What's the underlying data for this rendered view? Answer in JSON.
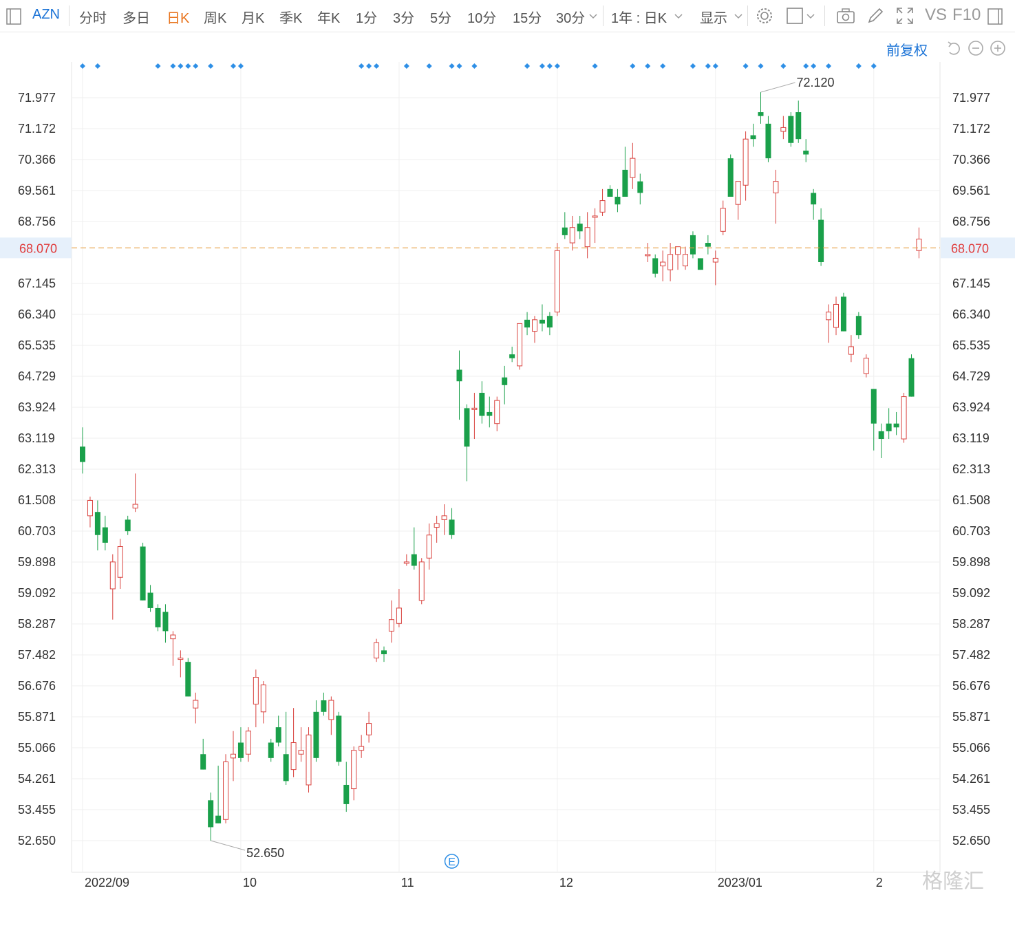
{
  "toolbar": {
    "symbol": "AZN",
    "periods": [
      "分时",
      "多日",
      "日K",
      "周K",
      "月K",
      "季K",
      "年K",
      "1分",
      "3分",
      "5分",
      "10分",
      "15分",
      "30分"
    ],
    "active_period": "日K",
    "range_select": "1年 : 日K",
    "display_select": "显示",
    "vs_label": "VS",
    "f10_label": "F10",
    "icons": [
      "panel-toggle-icon",
      "chevron-down-icon",
      "gear-icon",
      "square-icon",
      "camera-icon",
      "pencil-icon",
      "fullscreen-icon",
      "panel-right-icon"
    ]
  },
  "controls": {
    "restore_label": "前复权",
    "icons": [
      "undo-icon",
      "zoom-out-icon",
      "zoom-in-icon"
    ]
  },
  "event_marker_label": "E",
  "watermark": "格隆汇",
  "colors": {
    "up": "#d9413d",
    "down": "#1aa04a",
    "current_line": "#e8a043",
    "current_label": "#e03b3b",
    "accent": "#1b73d6",
    "marker": "#2e8fe6"
  },
  "chart_data": {
    "type": "candlestick",
    "ylim": [
      52.3,
      72.6
    ],
    "y_ticks": [
      "71.977",
      "71.172",
      "70.366",
      "69.561",
      "68.756",
      "67.145",
      "66.340",
      "65.535",
      "64.729",
      "63.924",
      "63.119",
      "62.313",
      "61.508",
      "60.703",
      "59.898",
      "59.092",
      "58.287",
      "57.482",
      "56.676",
      "55.871",
      "55.066",
      "54.261",
      "53.455",
      "52.650"
    ],
    "current_price": "68.070",
    "max_label": "72.120",
    "min_label": "52.650",
    "x_labels": [
      {
        "label": "2022/09",
        "index": 0
      },
      {
        "label": "10",
        "index": 21
      },
      {
        "label": "11",
        "index": 42
      },
      {
        "label": "12",
        "index": 63
      },
      {
        "label": "2023/01",
        "index": 84
      },
      {
        "label": "2",
        "index": 105
      }
    ],
    "event_index": 49,
    "marker_indices": [
      0,
      2,
      10,
      12,
      13,
      14,
      15,
      17,
      20,
      21,
      37,
      38,
      39,
      43,
      46,
      49,
      50,
      52,
      59,
      61,
      62,
      63,
      68,
      73,
      75,
      77,
      81,
      83,
      84,
      88,
      90,
      93,
      96,
      97,
      99,
      103,
      105
    ],
    "candles": [
      {
        "o": 62.9,
        "h": 63.4,
        "l": 62.2,
        "c": 62.5
      },
      {
        "o": 61.1,
        "h": 61.6,
        "l": 60.8,
        "c": 61.5
      },
      {
        "o": 61.2,
        "h": 61.5,
        "l": 60.2,
        "c": 60.6
      },
      {
        "o": 60.8,
        "h": 61.1,
        "l": 60.2,
        "c": 60.4
      },
      {
        "o": 59.2,
        "h": 60.1,
        "l": 58.4,
        "c": 59.9
      },
      {
        "o": 59.5,
        "h": 60.5,
        "l": 59.2,
        "c": 60.3
      },
      {
        "o": 61.0,
        "h": 61.1,
        "l": 60.6,
        "c": 60.7
      },
      {
        "o": 61.3,
        "h": 62.2,
        "l": 61.2,
        "c": 61.4
      },
      {
        "o": 60.3,
        "h": 60.4,
        "l": 58.9,
        "c": 58.9
      },
      {
        "o": 59.1,
        "h": 59.3,
        "l": 58.6,
        "c": 58.7
      },
      {
        "o": 58.7,
        "h": 58.8,
        "l": 58.1,
        "c": 58.2
      },
      {
        "o": 58.6,
        "h": 58.8,
        "l": 57.8,
        "c": 58.1
      },
      {
        "o": 57.9,
        "h": 58.1,
        "l": 57.2,
        "c": 58.0
      },
      {
        "o": 57.4,
        "h": 57.6,
        "l": 56.9,
        "c": 57.4
      },
      {
        "o": 57.3,
        "h": 57.4,
        "l": 56.4,
        "c": 56.4
      },
      {
        "o": 56.1,
        "h": 56.5,
        "l": 55.7,
        "c": 56.3
      },
      {
        "o": 54.9,
        "h": 55.3,
        "l": 54.5,
        "c": 54.5
      },
      {
        "o": 53.7,
        "h": 53.9,
        "l": 52.65,
        "c": 53.0
      },
      {
        "o": 53.3,
        "h": 54.6,
        "l": 53.1,
        "c": 53.1
      },
      {
        "o": 53.2,
        "h": 54.9,
        "l": 53.1,
        "c": 54.7
      },
      {
        "o": 54.8,
        "h": 55.5,
        "l": 54.2,
        "c": 54.9
      },
      {
        "o": 55.2,
        "h": 55.6,
        "l": 54.7,
        "c": 54.8
      },
      {
        "o": 54.9,
        "h": 55.6,
        "l": 54.7,
        "c": 55.5
      },
      {
        "o": 56.2,
        "h": 57.1,
        "l": 55.6,
        "c": 56.9
      },
      {
        "o": 56.0,
        "h": 56.8,
        "l": 55.7,
        "c": 56.7
      },
      {
        "o": 55.2,
        "h": 55.3,
        "l": 54.7,
        "c": 54.8
      },
      {
        "o": 55.6,
        "h": 55.9,
        "l": 55.1,
        "c": 55.2
      },
      {
        "o": 54.9,
        "h": 56.0,
        "l": 54.1,
        "c": 54.2
      },
      {
        "o": 54.5,
        "h": 56.1,
        "l": 54.3,
        "c": 55.2
      },
      {
        "o": 54.9,
        "h": 55.6,
        "l": 54.7,
        "c": 55.0
      },
      {
        "o": 54.1,
        "h": 55.6,
        "l": 53.9,
        "c": 55.4
      },
      {
        "o": 56.0,
        "h": 56.3,
        "l": 54.7,
        "c": 54.8
      },
      {
        "o": 56.3,
        "h": 56.5,
        "l": 55.9,
        "c": 56.0
      },
      {
        "o": 55.8,
        "h": 56.4,
        "l": 55.4,
        "c": 56.3
      },
      {
        "o": 55.9,
        "h": 56.0,
        "l": 54.6,
        "c": 54.7
      },
      {
        "o": 54.1,
        "h": 54.7,
        "l": 53.4,
        "c": 53.6
      },
      {
        "o": 54.0,
        "h": 55.1,
        "l": 53.7,
        "c": 55.0
      },
      {
        "o": 55.0,
        "h": 55.4,
        "l": 54.8,
        "c": 55.1
      },
      {
        "o": 55.4,
        "h": 56.0,
        "l": 55.2,
        "c": 55.7
      },
      {
        "o": 57.4,
        "h": 57.9,
        "l": 57.3,
        "c": 57.8
      },
      {
        "o": 57.6,
        "h": 57.7,
        "l": 57.3,
        "c": 57.5
      },
      {
        "o": 58.1,
        "h": 58.9,
        "l": 57.8,
        "c": 58.4
      },
      {
        "o": 58.3,
        "h": 59.2,
        "l": 58.2,
        "c": 58.7
      },
      {
        "o": 59.9,
        "h": 60.1,
        "l": 59.8,
        "c": 59.9
      },
      {
        "o": 60.1,
        "h": 60.8,
        "l": 59.7,
        "c": 59.8
      },
      {
        "o": 58.9,
        "h": 60.0,
        "l": 58.8,
        "c": 59.9
      },
      {
        "o": 60.0,
        "h": 60.9,
        "l": 59.7,
        "c": 60.6
      },
      {
        "o": 60.8,
        "h": 61.1,
        "l": 60.4,
        "c": 60.9
      },
      {
        "o": 61.0,
        "h": 61.4,
        "l": 60.6,
        "c": 61.1
      },
      {
        "o": 61.0,
        "h": 61.3,
        "l": 60.5,
        "c": 60.6
      },
      {
        "o": 64.9,
        "h": 65.4,
        "l": 63.6,
        "c": 64.6
      },
      {
        "o": 63.9,
        "h": 64.0,
        "l": 62.0,
        "c": 62.9
      },
      {
        "o": 63.9,
        "h": 64.3,
        "l": 63.1,
        "c": 63.9
      },
      {
        "o": 64.3,
        "h": 64.6,
        "l": 63.5,
        "c": 63.7
      },
      {
        "o": 63.8,
        "h": 64.2,
        "l": 63.4,
        "c": 63.7
      },
      {
        "o": 63.5,
        "h": 64.2,
        "l": 63.3,
        "c": 64.1
      },
      {
        "o": 64.7,
        "h": 65.0,
        "l": 64.0,
        "c": 64.5
      },
      {
        "o": 65.3,
        "h": 65.5,
        "l": 65.1,
        "c": 65.2
      },
      {
        "o": 65.0,
        "h": 66.1,
        "l": 64.9,
        "c": 66.1
      },
      {
        "o": 66.2,
        "h": 66.4,
        "l": 65.8,
        "c": 66.0
      },
      {
        "o": 65.9,
        "h": 66.3,
        "l": 65.6,
        "c": 66.2
      },
      {
        "o": 66.2,
        "h": 66.6,
        "l": 65.9,
        "c": 66.1
      },
      {
        "o": 66.3,
        "h": 66.4,
        "l": 65.8,
        "c": 66.0
      },
      {
        "o": 66.4,
        "h": 68.2,
        "l": 66.3,
        "c": 68.0
      },
      {
        "o": 68.6,
        "h": 69.0,
        "l": 68.3,
        "c": 68.4
      },
      {
        "o": 68.2,
        "h": 68.9,
        "l": 68.0,
        "c": 68.6
      },
      {
        "o": 68.7,
        "h": 68.9,
        "l": 68.3,
        "c": 68.5
      },
      {
        "o": 68.1,
        "h": 69.0,
        "l": 67.8,
        "c": 68.6
      },
      {
        "o": 68.9,
        "h": 69.1,
        "l": 68.2,
        "c": 68.9
      },
      {
        "o": 69.0,
        "h": 69.6,
        "l": 68.9,
        "c": 69.3
      },
      {
        "o": 69.6,
        "h": 69.7,
        "l": 69.4,
        "c": 69.4
      },
      {
        "o": 69.4,
        "h": 69.6,
        "l": 69.0,
        "c": 69.2
      },
      {
        "o": 70.1,
        "h": 70.7,
        "l": 69.4,
        "c": 69.4
      },
      {
        "o": 69.9,
        "h": 70.8,
        "l": 69.6,
        "c": 70.4
      },
      {
        "o": 69.8,
        "h": 70.0,
        "l": 69.2,
        "c": 69.5
      },
      {
        "o": 67.9,
        "h": 68.2,
        "l": 67.7,
        "c": 67.9
      },
      {
        "o": 67.8,
        "h": 67.9,
        "l": 67.3,
        "c": 67.4
      },
      {
        "o": 67.6,
        "h": 68.0,
        "l": 67.2,
        "c": 67.7
      },
      {
        "o": 67.5,
        "h": 68.2,
        "l": 67.2,
        "c": 67.9
      },
      {
        "o": 67.9,
        "h": 68.1,
        "l": 67.5,
        "c": 68.1
      },
      {
        "o": 67.6,
        "h": 68.1,
        "l": 67.5,
        "c": 67.9
      },
      {
        "o": 68.4,
        "h": 68.5,
        "l": 67.8,
        "c": 67.9
      },
      {
        "o": 67.8,
        "h": 67.8,
        "l": 67.5,
        "c": 67.5
      },
      {
        "o": 68.2,
        "h": 68.4,
        "l": 67.9,
        "c": 68.1
      },
      {
        "o": 67.7,
        "h": 68.0,
        "l": 67.1,
        "c": 67.8
      },
      {
        "o": 68.5,
        "h": 69.3,
        "l": 68.4,
        "c": 69.1
      },
      {
        "o": 70.4,
        "h": 70.5,
        "l": 69.4,
        "c": 69.4
      },
      {
        "o": 69.2,
        "h": 69.7,
        "l": 68.8,
        "c": 69.8
      },
      {
        "o": 69.7,
        "h": 71.1,
        "l": 69.3,
        "c": 70.9
      },
      {
        "o": 71.0,
        "h": 71.3,
        "l": 70.7,
        "c": 70.9
      },
      {
        "o": 71.6,
        "h": 72.12,
        "l": 71.3,
        "c": 71.5
      },
      {
        "o": 71.3,
        "h": 71.5,
        "l": 70.3,
        "c": 70.4
      },
      {
        "o": 69.5,
        "h": 70.1,
        "l": 68.7,
        "c": 69.8
      },
      {
        "o": 71.1,
        "h": 71.5,
        "l": 70.9,
        "c": 71.2
      },
      {
        "o": 71.5,
        "h": 71.6,
        "l": 70.7,
        "c": 70.8
      },
      {
        "o": 71.6,
        "h": 71.9,
        "l": 70.8,
        "c": 70.9
      },
      {
        "o": 70.6,
        "h": 70.9,
        "l": 70.3,
        "c": 70.5
      },
      {
        "o": 69.5,
        "h": 69.6,
        "l": 68.8,
        "c": 69.2
      },
      {
        "o": 68.8,
        "h": 69.1,
        "l": 67.6,
        "c": 67.7
      },
      {
        "o": 66.2,
        "h": 66.6,
        "l": 65.6,
        "c": 66.4
      },
      {
        "o": 66.0,
        "h": 66.8,
        "l": 65.8,
        "c": 66.6
      },
      {
        "o": 66.8,
        "h": 66.9,
        "l": 65.9,
        "c": 65.9
      },
      {
        "o": 65.3,
        "h": 65.8,
        "l": 65.1,
        "c": 65.5
      },
      {
        "o": 66.3,
        "h": 66.4,
        "l": 65.7,
        "c": 65.8
      },
      {
        "o": 64.8,
        "h": 65.3,
        "l": 64.7,
        "c": 65.2
      },
      {
        "o": 64.4,
        "h": 64.4,
        "l": 62.8,
        "c": 63.5
      },
      {
        "o": 63.3,
        "h": 63.5,
        "l": 62.6,
        "c": 63.1
      },
      {
        "o": 63.5,
        "h": 63.9,
        "l": 63.1,
        "c": 63.3
      },
      {
        "o": 63.5,
        "h": 63.8,
        "l": 63.2,
        "c": 63.4
      },
      {
        "o": 63.1,
        "h": 64.3,
        "l": 63.0,
        "c": 64.2
      },
      {
        "o": 65.2,
        "h": 65.3,
        "l": 64.2,
        "c": 64.2
      },
      {
        "o": 68.0,
        "h": 68.6,
        "l": 67.8,
        "c": 68.3
      }
    ]
  }
}
